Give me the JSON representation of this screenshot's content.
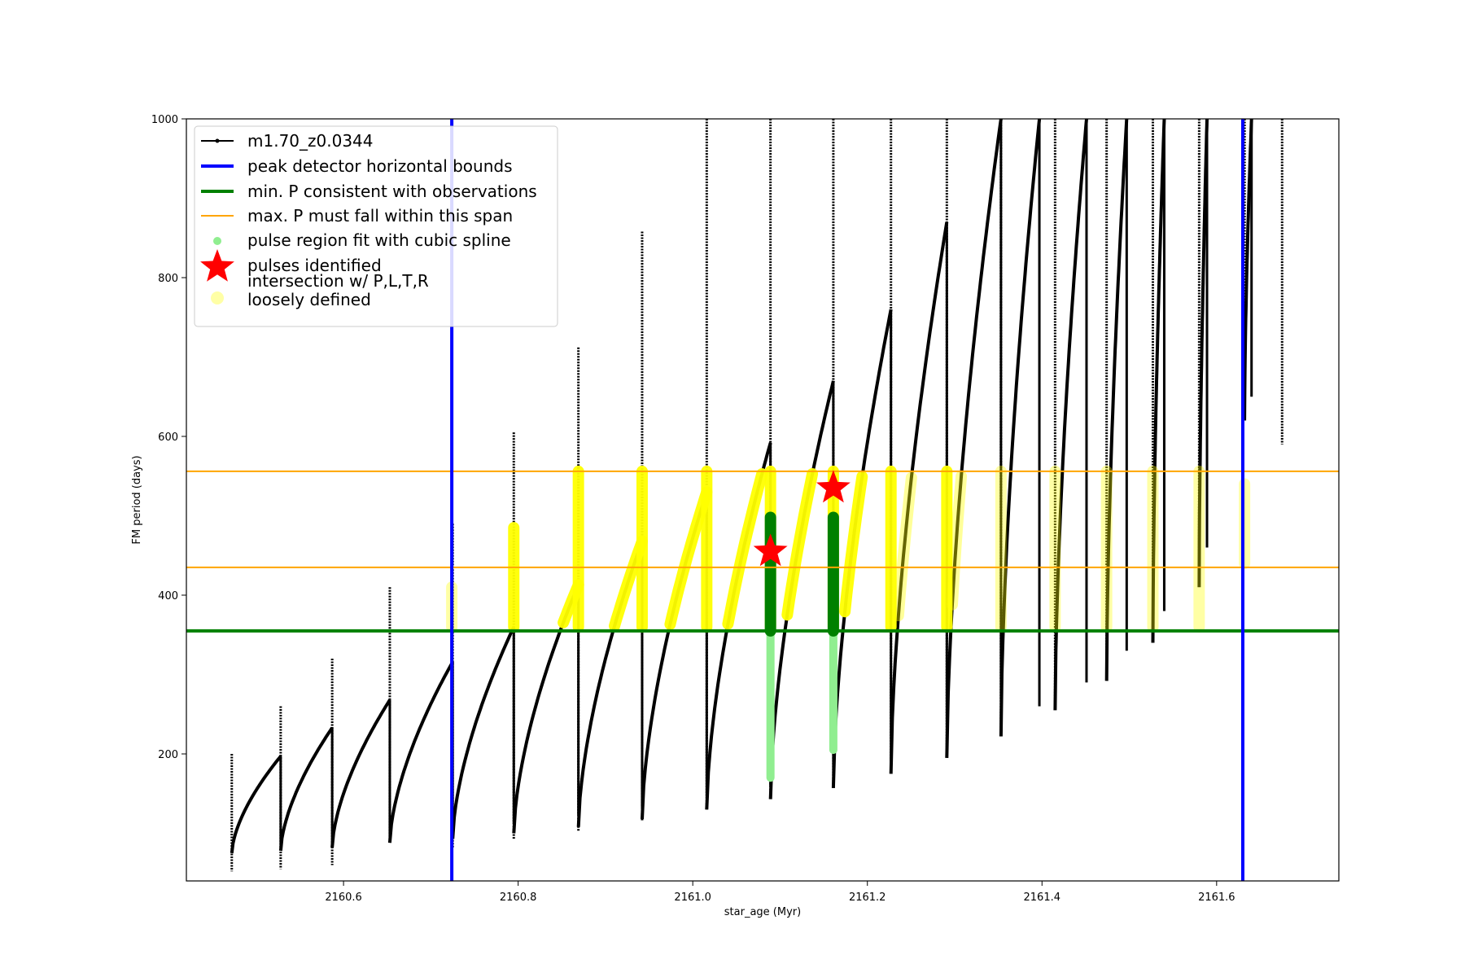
{
  "chart_data": {
    "type": "line",
    "title": "",
    "xlabel": "star_age (Myr)",
    "ylabel": "FM period (days)",
    "xlim": [
      2160.42,
      2161.74
    ],
    "ylim": [
      40,
      1000
    ],
    "x_ticks": [
      2160.6,
      2160.8,
      2161.0,
      2161.2,
      2161.4,
      2161.6
    ],
    "y_ticks": [
      200,
      400,
      600,
      800,
      1000
    ],
    "legend_position": "top-left",
    "grid": false,
    "colors": {
      "model": "#000000",
      "peak_bounds": "#0000ff",
      "min_p": "#008000",
      "max_p_span": "#ffa500",
      "spline": "#90ee90",
      "pulses": "#ff0000",
      "intersection": "#ffff00"
    },
    "legend": [
      {
        "key": "model",
        "label": "m1.70_z0.0344",
        "style": "line-marker"
      },
      {
        "key": "peak_bounds",
        "label": "peak detector horizontal bounds",
        "style": "thick-line"
      },
      {
        "key": "min_p",
        "label": "min. P consistent with observations",
        "style": "thick-line"
      },
      {
        "key": "max_p_span",
        "label": "max. P must fall within this span",
        "style": "thin-line"
      },
      {
        "key": "spline",
        "label": "pulse region fit with cubic spline",
        "style": "dot"
      },
      {
        "key": "pulses",
        "label": "pulses identified",
        "style": "star"
      },
      {
        "key": "intersection",
        "label": "intersection w/ P,L,T,R",
        "label2": "loosely defined",
        "style": "faint-dot"
      }
    ],
    "vertical_lines": [
      2160.724,
      2161.63
    ],
    "min_p_line": 355,
    "max_p_span": [
      435,
      556
    ],
    "pulses": [
      {
        "x_start": 2160.472,
        "x_end": 2160.528,
        "y_start": 75,
        "y_end": 197,
        "spike_top": 200,
        "spike_bottom": 52
      },
      {
        "x_start": 2160.528,
        "x_end": 2160.587,
        "y_start": 78,
        "y_end": 233,
        "spike_top": 260,
        "spike_bottom": 55
      },
      {
        "x_start": 2160.587,
        "x_end": 2160.653,
        "y_start": 82,
        "y_end": 268,
        "spike_top": 320,
        "spike_bottom": 60
      },
      {
        "x_start": 2160.653,
        "x_end": 2160.725,
        "y_start": 88,
        "y_end": 316,
        "spike_top": 410,
        "spike_bottom": 93
      },
      {
        "x_start": 2160.725,
        "x_end": 2160.795,
        "y_start": 93,
        "y_end": 360,
        "spike_top": 490,
        "spike_bottom": 82
      },
      {
        "x_start": 2160.795,
        "x_end": 2160.869,
        "y_start": 100,
        "y_end": 413,
        "spike_top": 605,
        "spike_bottom": 93
      },
      {
        "x_start": 2160.869,
        "x_end": 2160.942,
        "y_start": 108,
        "y_end": 468,
        "spike_top": 712,
        "spike_bottom": 103
      },
      {
        "x_start": 2160.942,
        "x_end": 2161.016,
        "y_start": 118,
        "y_end": 530,
        "spike_top": 858,
        "spike_bottom": 115
      },
      {
        "x_start": 2161.016,
        "x_end": 2161.089,
        "y_start": 130,
        "y_end": 592,
        "spike_top": 1000,
        "spike_bottom": 130
      },
      {
        "x_start": 2161.089,
        "x_end": 2161.161,
        "y_start": 143,
        "y_end": 670,
        "spike_top": 1000,
        "spike_bottom": 143
      },
      {
        "x_start": 2161.161,
        "x_end": 2161.227,
        "y_start": 157,
        "y_end": 760,
        "spike_top": 1000,
        "spike_bottom": 162
      },
      {
        "x_start": 2161.227,
        "x_end": 2161.291,
        "y_start": 175,
        "y_end": 870,
        "spike_top": 1000,
        "spike_bottom": 180
      },
      {
        "x_start": 2161.291,
        "x_end": 2161.353,
        "y_start": 195,
        "y_end": 1000,
        "spike_top": 1000,
        "spike_bottom": 200
      },
      {
        "x_start": 2161.353,
        "x_end": 2161.397,
        "y_start": 222,
        "y_end": 1000,
        "spike_top": 1000,
        "spike_bottom": 230
      },
      {
        "x_start": 2161.415,
        "x_end": 2161.451,
        "y_start": 255,
        "y_end": 1000,
        "spike_top": 1000,
        "spike_bottom": 260
      },
      {
        "x_start": 2161.474,
        "x_end": 2161.497,
        "y_start": 292,
        "y_end": 1000,
        "spike_top": 1000,
        "spike_bottom": 300
      },
      {
        "x_start": 2161.527,
        "x_end": 2161.54,
        "y_start": 340,
        "y_end": 1000,
        "spike_top": 1000,
        "spike_bottom": 350
      },
      {
        "x_start": 2161.58,
        "x_end": 2161.589,
        "y_start": 410,
        "y_end": 1000,
        "spike_top": 1000,
        "spike_bottom": 430
      },
      {
        "x_start": 2161.632,
        "x_end": 2161.64,
        "y_start": 620,
        "y_end": 1000,
        "spike_top": 1000,
        "spike_bottom": 620
      },
      {
        "x_start": 2161.675,
        "x_end": 2161.675,
        "y_start": 590,
        "y_end": 1000,
        "spike_top": 1000,
        "spike_bottom": 590
      }
    ],
    "spline_regions": [
      {
        "x": 2161.089,
        "y_min": 170,
        "y_max": 500
      },
      {
        "x": 2161.161,
        "y_min": 205,
        "y_max": 500
      }
    ],
    "pulses_identified": [
      {
        "x": 2161.089,
        "y": 455
      },
      {
        "x": 2161.161,
        "y": 535
      }
    ],
    "intersection_ranges": [
      [
        2160.724,
        360,
        410
      ],
      [
        2160.795,
        360,
        485
      ],
      [
        2160.869,
        360,
        556
      ],
      [
        2160.942,
        360,
        556
      ],
      [
        2161.016,
        360,
        556
      ],
      [
        2161.089,
        360,
        556
      ],
      [
        2161.161,
        360,
        556
      ],
      [
        2161.227,
        360,
        556
      ],
      [
        2161.291,
        360,
        556
      ],
      [
        2161.353,
        360,
        556
      ],
      [
        2161.415,
        360,
        556
      ],
      [
        2161.474,
        360,
        556
      ],
      [
        2161.527,
        360,
        556
      ],
      [
        2161.58,
        360,
        556
      ],
      [
        2161.632,
        440,
        540
      ]
    ]
  }
}
